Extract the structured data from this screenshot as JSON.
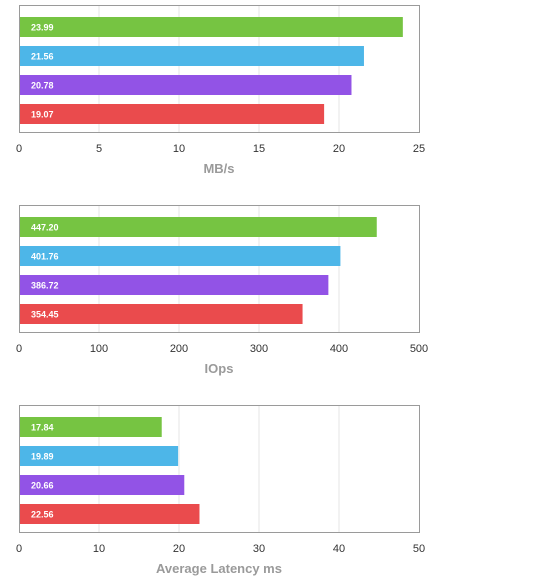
{
  "chart_data": [
    {
      "type": "bar",
      "orientation": "horizontal",
      "xlabel": "MB/s",
      "xlim": [
        0,
        25
      ],
      "xticks": [
        0,
        5,
        10,
        15,
        20,
        25
      ],
      "grid": true,
      "values": [
        23.99,
        21.56,
        20.78,
        19.07
      ],
      "labels": [
        "23.99",
        "21.56",
        "20.78",
        "19.07"
      ],
      "colors": [
        "#76c442",
        "#4db6e8",
        "#9253e6",
        "#ea4b4d"
      ]
    },
    {
      "type": "bar",
      "orientation": "horizontal",
      "xlabel": "IOps",
      "xlim": [
        0,
        500
      ],
      "xticks": [
        0,
        100,
        200,
        300,
        400,
        500
      ],
      "grid": true,
      "values": [
        447.2,
        401.76,
        386.72,
        354.45
      ],
      "labels": [
        "447.20",
        "401.76",
        "386.72",
        "354.45"
      ],
      "colors": [
        "#76c442",
        "#4db6e8",
        "#9253e6",
        "#ea4b4d"
      ]
    },
    {
      "type": "bar",
      "orientation": "horizontal",
      "xlabel": "Average Latency ms",
      "xlim": [
        0,
        50
      ],
      "xticks": [
        0,
        10,
        20,
        30,
        40,
        50
      ],
      "grid": true,
      "values": [
        17.84,
        19.89,
        20.66,
        22.56
      ],
      "labels": [
        "17.84",
        "19.89",
        "20.66",
        "22.56"
      ],
      "colors": [
        "#76c442",
        "#4db6e8",
        "#9253e6",
        "#ea4b4d"
      ]
    }
  ]
}
